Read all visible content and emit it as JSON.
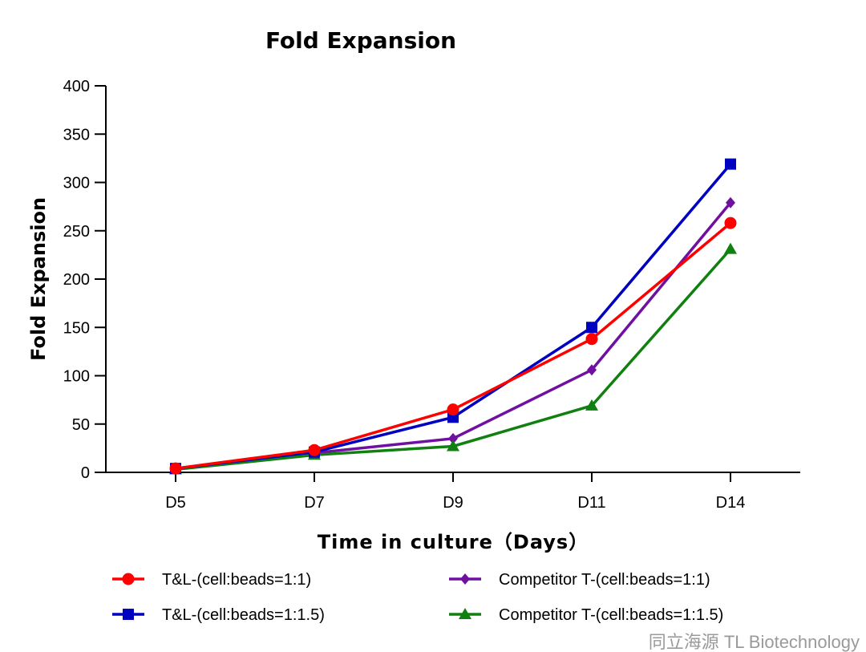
{
  "chart_data": {
    "type": "line",
    "title": "Fold Expansion",
    "xlabel": "Time in culture（Days）",
    "ylabel": "Fold Expansion",
    "categories": [
      "D5",
      "D7",
      "D9",
      "D11",
      "D14"
    ],
    "ylim": [
      0,
      400
    ],
    "yticks": [
      0,
      50,
      100,
      150,
      200,
      250,
      300,
      350,
      400
    ],
    "grid": false,
    "legend_position": "bottom",
    "series": [
      {
        "name": "T&L-(cell:beads=1:1)",
        "color": "#ff0000",
        "marker": "circle",
        "values": [
          4,
          23,
          65,
          138,
          258
        ]
      },
      {
        "name": "T&L-(cell:beads=1:1.5)",
        "color": "#0000c0",
        "marker": "square",
        "values": [
          4,
          21,
          57,
          150,
          319
        ]
      },
      {
        "name": "Competitor T-(cell:beads=1:1)",
        "color": "#7010a0",
        "marker": "diamond",
        "values": [
          4,
          20,
          35,
          106,
          279
        ]
      },
      {
        "name": "Competitor T-(cell:beads=1:1.5)",
        "color": "#108010",
        "marker": "triangle",
        "values": [
          3,
          18,
          27,
          69,
          231
        ]
      }
    ]
  },
  "watermark": "同立海源 TL Biotechnology"
}
